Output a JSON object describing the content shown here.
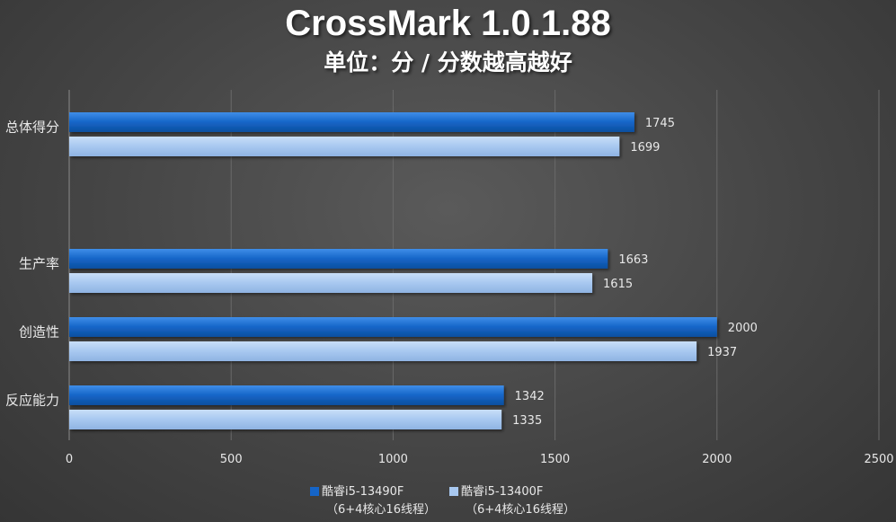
{
  "chart_data": {
    "type": "bar",
    "orientation": "horizontal",
    "title": "CrossMark 1.0.1.88",
    "subtitle": "单位：分 / 分数越高越好",
    "categories": [
      "总体得分",
      "",
      "生产率",
      "创造性",
      "反应能力"
    ],
    "series": [
      {
        "name": "酷睿i5-13490F",
        "name_sub": "（6+4核心16线程）",
        "color": "#1565c8",
        "values": [
          1745,
          null,
          1663,
          2000,
          1342
        ]
      },
      {
        "name": "酷睿i5-13400F",
        "name_sub": "（6+4核心16线程）",
        "color": "#a8c8f0",
        "values": [
          1699,
          null,
          1615,
          1937,
          1335
        ]
      }
    ],
    "xlim": [
      0,
      2500
    ],
    "xticks": [
      0,
      500,
      1000,
      1500,
      2000,
      2500
    ],
    "grid": true,
    "legend_position": "bottom"
  },
  "colors": {
    "background": "#454545",
    "grid": "#6a6a6a",
    "text": "#e8e8e8"
  }
}
